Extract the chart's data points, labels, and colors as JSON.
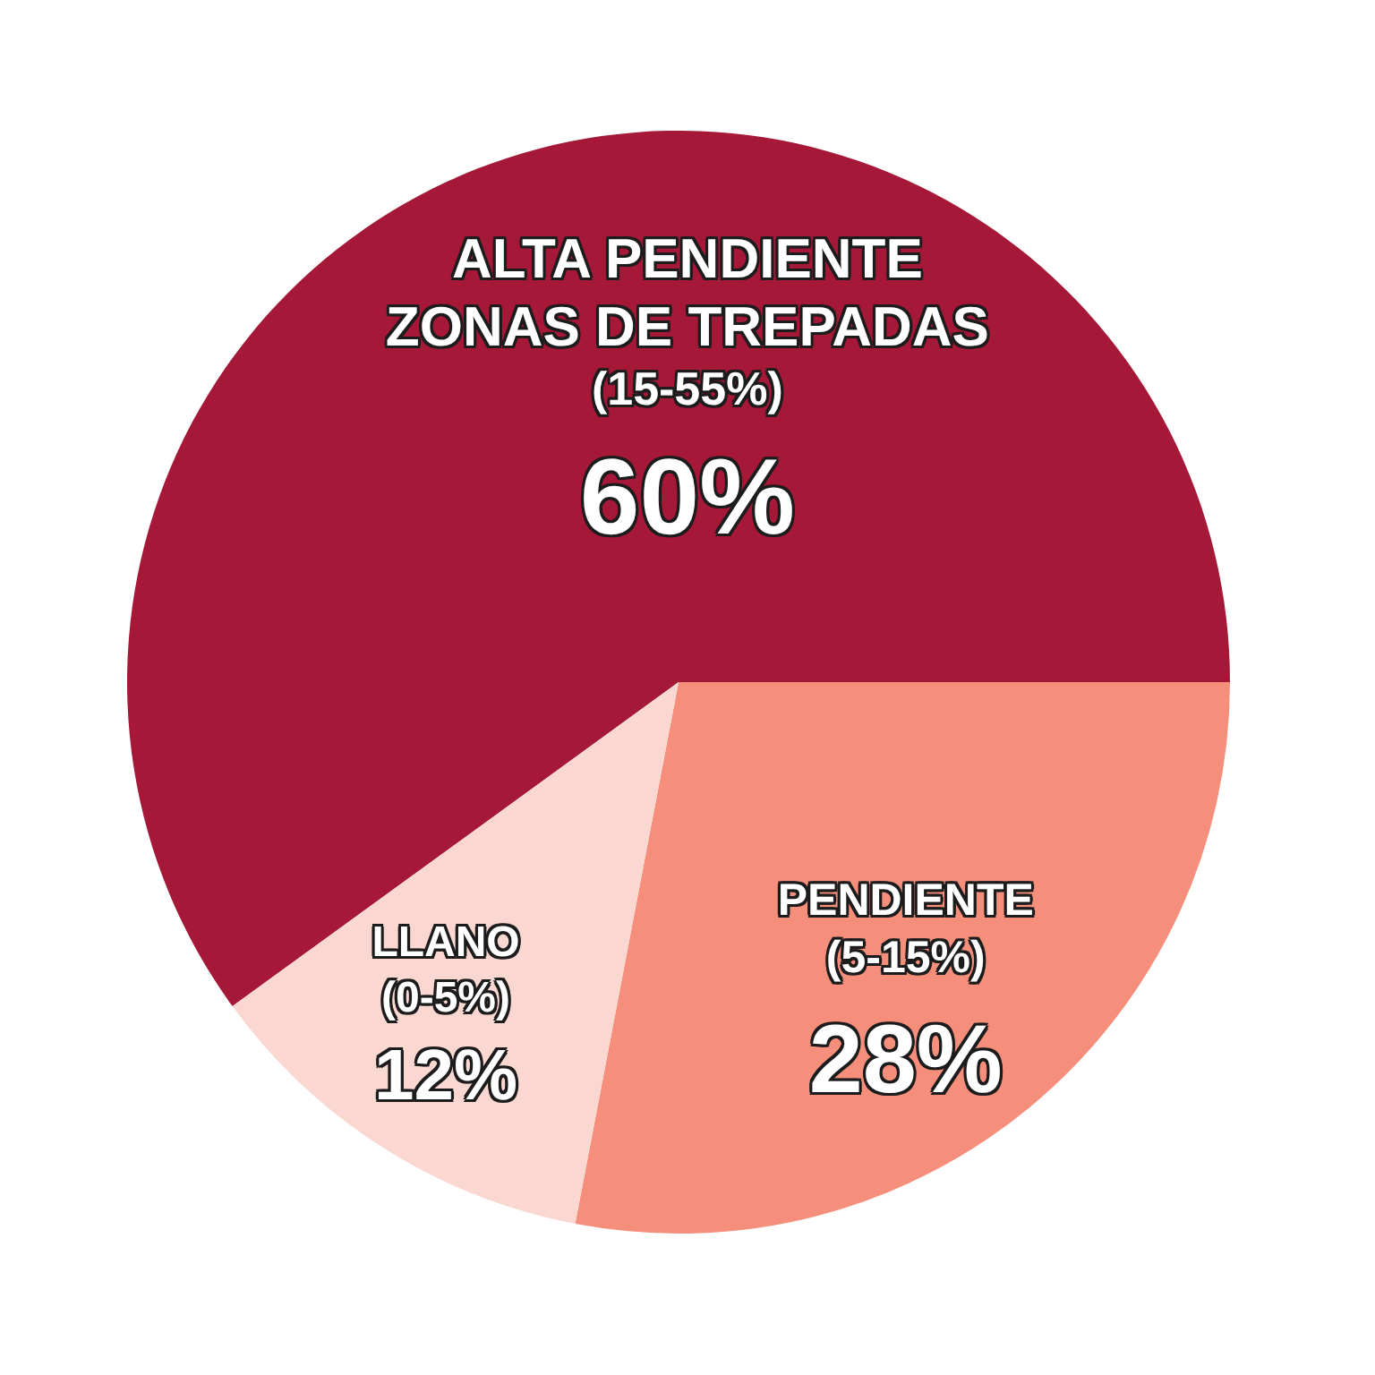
{
  "chart_data": {
    "type": "pie",
    "categories": [
      "ALTA PENDIENTE\nZONAS DE TREPADAS\n(15-55%)",
      "PENDIENTE\n(5-15%)",
      "LLANO\n(0-5%)"
    ],
    "values": [
      60,
      28,
      12
    ],
    "colors": [
      "#a51838",
      "#f58e7b",
      "#fbd7d1"
    ],
    "value_labels": [
      "60%",
      "28%",
      "12%"
    ]
  }
}
